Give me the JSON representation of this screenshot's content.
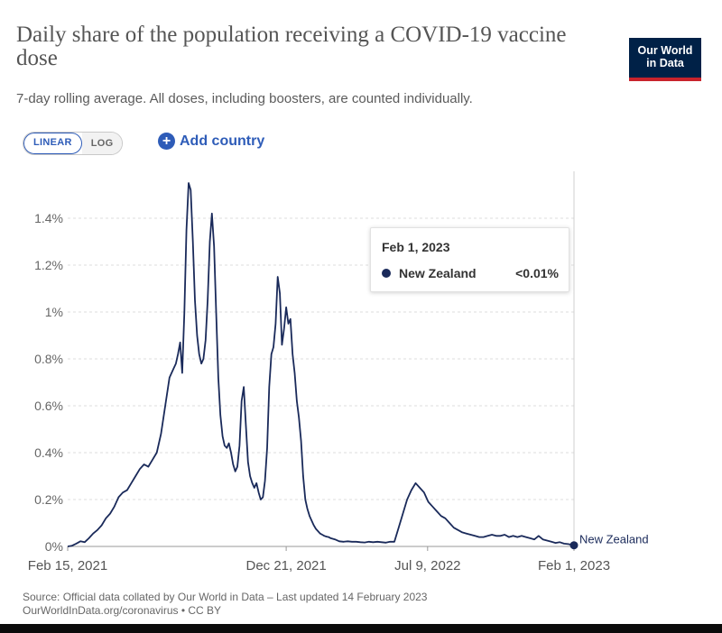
{
  "header": {
    "title": "Daily share of the population receiving a COVID-19 vaccine dose",
    "subtitle": "7-day rolling average. All doses, including boosters, are counted individually.",
    "logo_line1": "Our World",
    "logo_line2": "in Data"
  },
  "controls": {
    "linear_label": "LINEAR",
    "log_label": "LOG",
    "add_country_label": "Add country"
  },
  "tooltip": {
    "date": "Feb 1, 2023",
    "country": "New Zealand",
    "value": "<0.01%"
  },
  "footer": {
    "source_line1": "Source: Official data collated by Our World in Data – Last updated 14 February 2023",
    "source_line2": "OurWorldInData.org/coronavirus • CC BY"
  },
  "colors": {
    "series": "#1a2a5a",
    "accent": "#2e5cb8",
    "logo_bg": "#002147",
    "logo_bar": "#c8232c",
    "grid": "#dddddd"
  },
  "chart_data": {
    "type": "line",
    "title": "Daily share of the population receiving a COVID-19 vaccine dose",
    "subtitle": "7-day rolling average. All doses, including boosters, are counted individually.",
    "xlabel": "",
    "ylabel": "",
    "x_ticks": [
      "Feb 15, 2021",
      "Dec 21, 2021",
      "Jul 9, 2022",
      "Feb 1, 2023"
    ],
    "x_tick_days": [
      0,
      309,
      509,
      716
    ],
    "y_ticks": [
      "0%",
      "0.2%",
      "0.4%",
      "0.6%",
      "0.8%",
      "1%",
      "1.2%",
      "1.4%"
    ],
    "y_tick_values": [
      0,
      0.2,
      0.4,
      0.6,
      0.8,
      1.0,
      1.2,
      1.4
    ],
    "xlim_days": [
      0,
      716
    ],
    "ylim": [
      0,
      1.6
    ],
    "grid": "horizontal dashed",
    "end_label": "New Zealand",
    "series": [
      {
        "name": "New Zealand",
        "x_days": [
          0,
          6,
          12,
          18,
          24,
          30,
          36,
          42,
          48,
          54,
          60,
          66,
          72,
          78,
          84,
          90,
          96,
          102,
          108,
          114,
          120,
          126,
          132,
          138,
          144,
          150,
          153,
          156,
          159,
          162,
          165,
          168,
          171,
          174,
          177,
          180,
          183,
          186,
          189,
          192,
          195,
          198,
          201,
          204,
          207,
          210,
          213,
          216,
          219,
          222,
          225,
          228,
          231,
          234,
          237,
          240,
          243,
          246,
          249,
          252,
          255,
          258,
          261,
          264,
          267,
          270,
          273,
          276,
          279,
          282,
          285,
          288,
          291,
          294,
          297,
          300,
          303,
          306,
          309,
          312,
          315,
          318,
          321,
          324,
          327,
          330,
          333,
          336,
          339,
          342,
          345,
          348,
          351,
          354,
          357,
          360,
          363,
          366,
          369,
          372,
          378,
          384,
          390,
          396,
          402,
          408,
          414,
          420,
          426,
          432,
          438,
          444,
          450,
          456,
          462,
          468,
          474,
          480,
          486,
          492,
          498,
          504,
          507,
          510,
          516,
          522,
          528,
          534,
          540,
          546,
          552,
          558,
          564,
          570,
          576,
          582,
          588,
          594,
          600,
          606,
          612,
          618,
          624,
          630,
          636,
          642,
          648,
          654,
          660,
          666,
          672,
          678,
          684,
          690,
          696,
          702,
          708,
          714,
          716
        ],
        "values": [
          0,
          0.003,
          0.012,
          0.022,
          0.018,
          0.035,
          0.055,
          0.07,
          0.09,
          0.12,
          0.14,
          0.17,
          0.21,
          0.23,
          0.24,
          0.27,
          0.3,
          0.33,
          0.35,
          0.34,
          0.37,
          0.4,
          0.48,
          0.6,
          0.72,
          0.76,
          0.78,
          0.82,
          0.87,
          0.74,
          1.0,
          1.35,
          1.55,
          1.52,
          1.3,
          1.05,
          0.9,
          0.82,
          0.78,
          0.8,
          0.88,
          1.05,
          1.3,
          1.42,
          1.28,
          1.0,
          0.72,
          0.56,
          0.47,
          0.43,
          0.42,
          0.44,
          0.4,
          0.35,
          0.32,
          0.34,
          0.43,
          0.62,
          0.68,
          0.52,
          0.36,
          0.3,
          0.27,
          0.25,
          0.27,
          0.23,
          0.2,
          0.21,
          0.28,
          0.42,
          0.68,
          0.82,
          0.85,
          0.95,
          1.15,
          1.08,
          0.86,
          0.93,
          1.02,
          0.95,
          0.97,
          0.82,
          0.74,
          0.62,
          0.55,
          0.45,
          0.3,
          0.2,
          0.16,
          0.13,
          0.11,
          0.09,
          0.075,
          0.065,
          0.055,
          0.05,
          0.045,
          0.042,
          0.04,
          0.035,
          0.03,
          0.022,
          0.02,
          0.022,
          0.02,
          0.02,
          0.018,
          0.017,
          0.02,
          0.018,
          0.02,
          0.018,
          0.016,
          0.02,
          0.02,
          0.08,
          0.14,
          0.2,
          0.24,
          0.27,
          0.25,
          0.23,
          0.21,
          0.19,
          0.17,
          0.15,
          0.13,
          0.12,
          0.1,
          0.08,
          0.07,
          0.06,
          0.055,
          0.05,
          0.045,
          0.04,
          0.04,
          0.045,
          0.05,
          0.045,
          0.045,
          0.05,
          0.04,
          0.045,
          0.04,
          0.045,
          0.04,
          0.035,
          0.03,
          0.045,
          0.03,
          0.025,
          0.02,
          0.015,
          0.018,
          0.012,
          0.01,
          0.006,
          0.005
        ]
      }
    ]
  }
}
